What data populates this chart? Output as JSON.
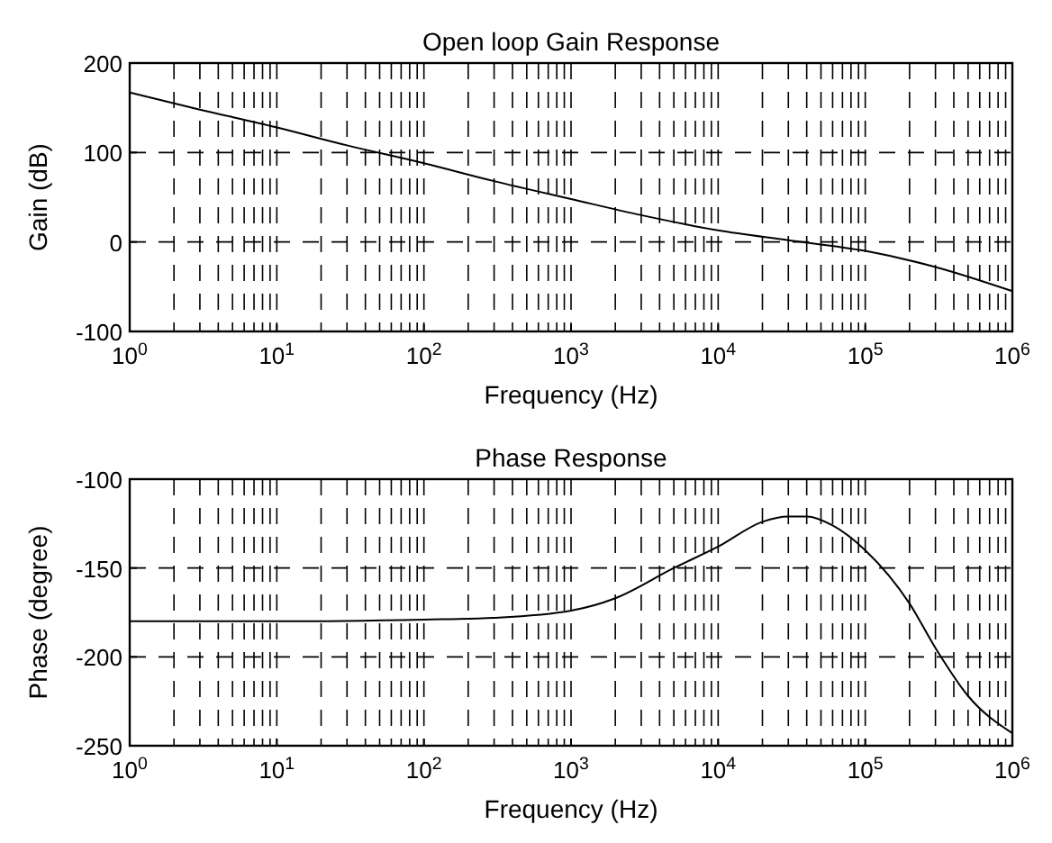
{
  "chart_data": [
    {
      "type": "line",
      "title": "Open loop Gain Response",
      "xlabel": "Frequency (Hz)",
      "ylabel": "Gain (dB)",
      "log": "x",
      "grid": true,
      "xlim": [
        1,
        1000000
      ],
      "ylim": [
        -100,
        200
      ],
      "xticks": [
        {
          "value": 1,
          "label": "10$^{0}$"
        },
        {
          "value": 10,
          "label": "10$^{1}$"
        },
        {
          "value": 100,
          "label": "10$^{2}$"
        },
        {
          "value": 1000,
          "label": "10$^{3}$"
        },
        {
          "value": 10000,
          "label": "10$^{4}$"
        },
        {
          "value": 100000,
          "label": "10$^{5}$"
        },
        {
          "value": 1000000,
          "label": "10$^{6}$"
        }
      ],
      "yticks": [
        -100,
        0,
        100,
        200
      ],
      "series": [
        {
          "color": "#000000",
          "x": [
            1,
            3,
            10,
            30,
            100,
            300,
            1000,
            3000,
            10000,
            30000,
            100000,
            300000,
            1000000
          ],
          "values": [
            167,
            148,
            128,
            108,
            88,
            68,
            48,
            30,
            13,
            2,
            -10,
            -28,
            -55
          ]
        }
      ]
    },
    {
      "type": "line",
      "title": "Phase Response",
      "xlabel": "Frequency (Hz)",
      "ylabel": "Phase (degree)",
      "log": "x",
      "grid": true,
      "xlim": [
        1,
        1000000
      ],
      "ylim": [
        -250,
        -100
      ],
      "xticks": [
        {
          "value": 1,
          "label": "10$^{0}$"
        },
        {
          "value": 10,
          "label": "10$^{1}$"
        },
        {
          "value": 100,
          "label": "10$^{2}$"
        },
        {
          "value": 1000,
          "label": "10$^{3}$"
        },
        {
          "value": 10000,
          "label": "10$^{4}$"
        },
        {
          "value": 100000,
          "label": "10$^{5}$"
        },
        {
          "value": 1000000,
          "label": "10$^{6}$"
        }
      ],
      "yticks": [
        -250,
        -200,
        -150,
        -100
      ],
      "series": [
        {
          "color": "#000000",
          "x": [
            1,
            10,
            100,
            300,
            1000,
            2000,
            5000,
            10000,
            20000,
            30000,
            40000,
            60000,
            100000,
            200000,
            300000,
            500000,
            1000000
          ],
          "values": [
            -180,
            -180,
            -179,
            -178,
            -174,
            -167,
            -150,
            -138,
            -124,
            -121,
            -121,
            -126,
            -140,
            -170,
            -195,
            -222,
            -243
          ]
        }
      ]
    }
  ]
}
